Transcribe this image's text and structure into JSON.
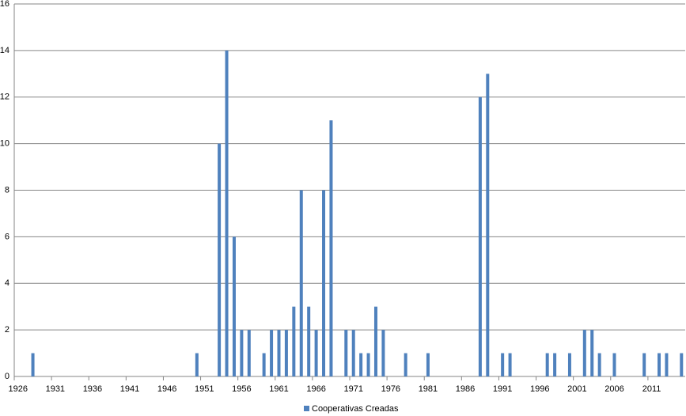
{
  "chart_data": {
    "type": "bar",
    "categories": [
      "1926",
      null,
      null,
      null,
      null,
      "1931",
      null,
      null,
      null,
      null,
      "1936",
      null,
      null,
      null,
      null,
      "1941",
      null,
      null,
      null,
      null,
      "1946",
      null,
      null,
      null,
      null,
      "1951",
      null,
      null,
      null,
      null,
      "1956",
      null,
      null,
      null,
      null,
      "1961",
      null,
      null,
      null,
      null,
      "1966",
      null,
      null,
      null,
      null,
      "1971",
      null,
      null,
      null,
      null,
      "1976",
      null,
      null,
      null,
      null,
      "1981",
      null,
      null,
      null,
      null,
      "1986",
      null,
      null,
      null,
      null,
      "1991",
      null,
      null,
      null,
      null,
      "1996",
      null,
      null,
      null,
      null,
      "2001",
      null,
      null,
      null,
      null,
      "2006",
      null,
      null,
      null,
      null,
      "2011",
      null,
      null,
      null,
      null
    ],
    "series": [
      {
        "name": "Cooperativas Creadas",
        "color": "#4f81bd",
        "values": [
          0,
          0,
          1,
          0,
          0,
          0,
          0,
          0,
          0,
          0,
          0,
          0,
          0,
          0,
          0,
          0,
          0,
          0,
          0,
          0,
          0,
          0,
          0,
          0,
          1,
          0,
          0,
          10,
          14,
          6,
          2,
          2,
          0,
          1,
          2,
          2,
          2,
          3,
          8,
          3,
          2,
          8,
          11,
          0,
          2,
          2,
          1,
          1,
          3,
          2,
          0,
          0,
          1,
          0,
          0,
          1,
          0,
          0,
          0,
          0,
          0,
          0,
          12,
          13,
          0,
          1,
          1,
          0,
          0,
          0,
          0,
          1,
          1,
          0,
          1,
          0,
          2,
          2,
          1,
          0,
          1,
          0,
          0,
          0,
          1,
          0,
          1,
          1,
          0,
          1
        ]
      }
    ],
    "ylim": [
      0,
      16
    ],
    "yticks": [
      0,
      2,
      4,
      6,
      8,
      10,
      12,
      14,
      16
    ],
    "grid": true,
    "legend": "bottom"
  }
}
